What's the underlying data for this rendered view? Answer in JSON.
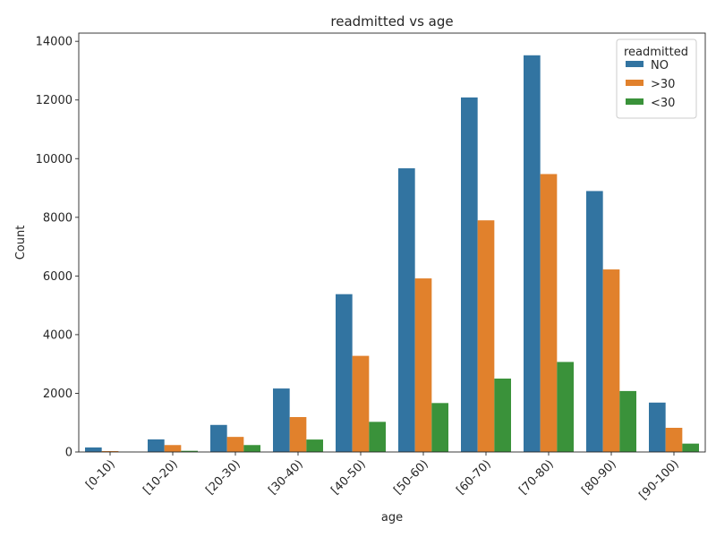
{
  "chart_data": {
    "type": "bar",
    "title": "readmitted vs age",
    "xlabel": "age",
    "ylabel": "Count",
    "categories": [
      "[0-10)",
      "[10-20)",
      "[20-30)",
      "[30-40)",
      "[40-50)",
      "[50-60)",
      "[60-70)",
      "[70-80)",
      "[80-90)",
      "[90-100)"
    ],
    "series": [
      {
        "name": "NO",
        "color": "#3274a1",
        "values": [
          154,
          429,
          922,
          2164,
          5380,
          9671,
          12087,
          13524,
          8896,
          1684
        ]
      },
      {
        "name": ">30",
        "color": "#e1812c",
        "values": [
          31,
          236,
          514,
          1190,
          3277,
          5917,
          7897,
          9475,
          6223,
          824
        ]
      },
      {
        "name": "<30",
        "color": "#3a923a",
        "values": [
          3,
          40,
          236,
          424,
          1027,
          1668,
          2502,
          3069,
          2078,
          285
        ]
      }
    ],
    "ylim": [
      0,
      14280
    ],
    "yticks": [
      0,
      2000,
      4000,
      6000,
      8000,
      10000,
      12000,
      14000
    ],
    "grid": false,
    "legend": {
      "title": "readmitted",
      "placement": "top-right"
    }
  }
}
